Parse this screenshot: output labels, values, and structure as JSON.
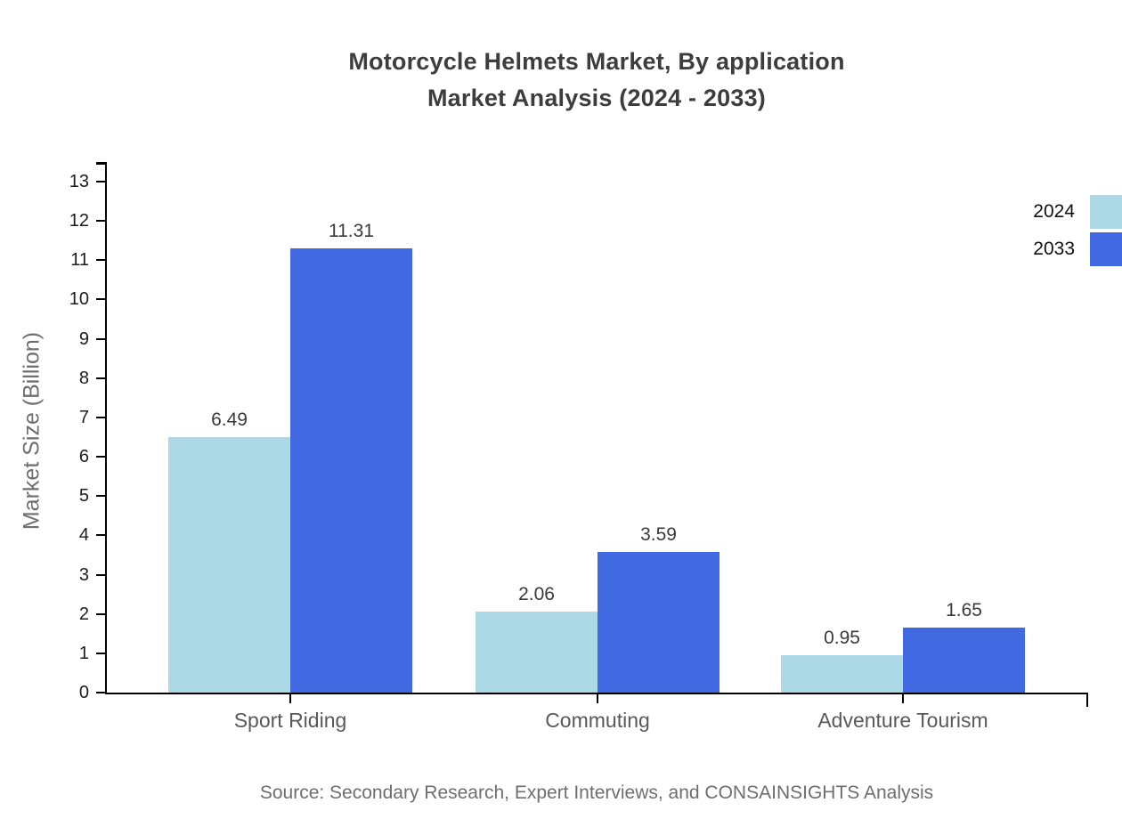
{
  "title": {
    "line1": "Motorcycle Helmets Market, By application",
    "line2": "Market Analysis (2024 - 2033)"
  },
  "source": "Source: Secondary Research, Expert Interviews, and CONSAINSIGHTS Analysis",
  "chart_data": {
    "type": "bar",
    "title": "Motorcycle Helmets Market, By application Market Analysis (2024 - 2033)",
    "categories": [
      "Sport Riding",
      "Commuting",
      "Adventure Tourism"
    ],
    "series": [
      {
        "name": "2024",
        "color": "#ADD8E6",
        "values": [
          6.49,
          2.06,
          0.95
        ]
      },
      {
        "name": "2033",
        "color": "#4169E1",
        "values": [
          11.31,
          3.59,
          1.65
        ]
      }
    ],
    "xlabel": "",
    "ylabel": "Market Size (Billion)",
    "ylim": [
      0,
      13
    ],
    "yticks": [
      0,
      1,
      2,
      3,
      4,
      5,
      6,
      7,
      8,
      9,
      10,
      11,
      12,
      13
    ],
    "grid": false,
    "value_labels": true,
    "value_label_format": "0.00",
    "legend_position": "top-right",
    "axis_color": "#000000",
    "text_colors": {
      "title": "#3d3d3d",
      "tick_labels": "#1c1c1c",
      "value_labels": "#3a3a3a",
      "category_labels": "#595959",
      "axis_title": "#6e6e6e",
      "source": "#6e6e6e"
    }
  }
}
